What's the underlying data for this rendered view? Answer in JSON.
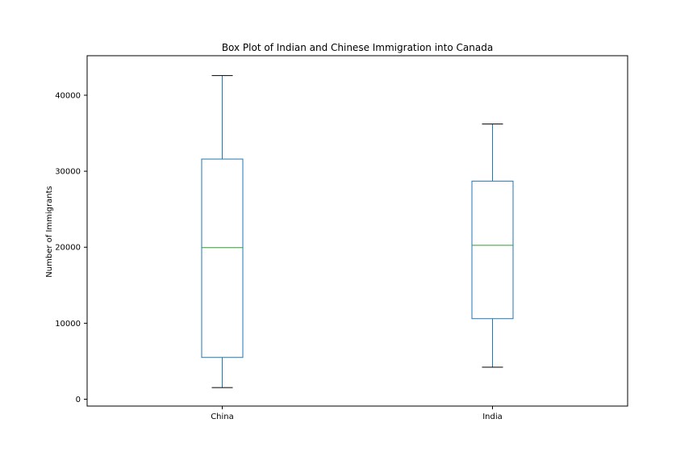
{
  "chart_data": {
    "type": "box",
    "title": "Box Plot of Indian and Chinese Immigration into Canada",
    "xlabel": "",
    "ylabel": "Number of Immigrants",
    "ylim": [
      -900,
      45200
    ],
    "yticks": [
      0,
      10000,
      20000,
      30000,
      40000
    ],
    "grid": false,
    "categories": [
      "China",
      "India"
    ],
    "boxes": [
      {
        "category": "China",
        "whisker_low": 1527,
        "q1": 5500,
        "median": 19950,
        "q3": 31600,
        "whisker_high": 42584
      },
      {
        "category": "India",
        "whisker_low": 4211,
        "q1": 10600,
        "median": 20250,
        "q3": 28700,
        "whisker_high": 36210
      }
    ],
    "colors": {
      "box": "#1f77b4",
      "median": "#2ca02c",
      "cap": "#000000",
      "axes": "#000000"
    }
  }
}
